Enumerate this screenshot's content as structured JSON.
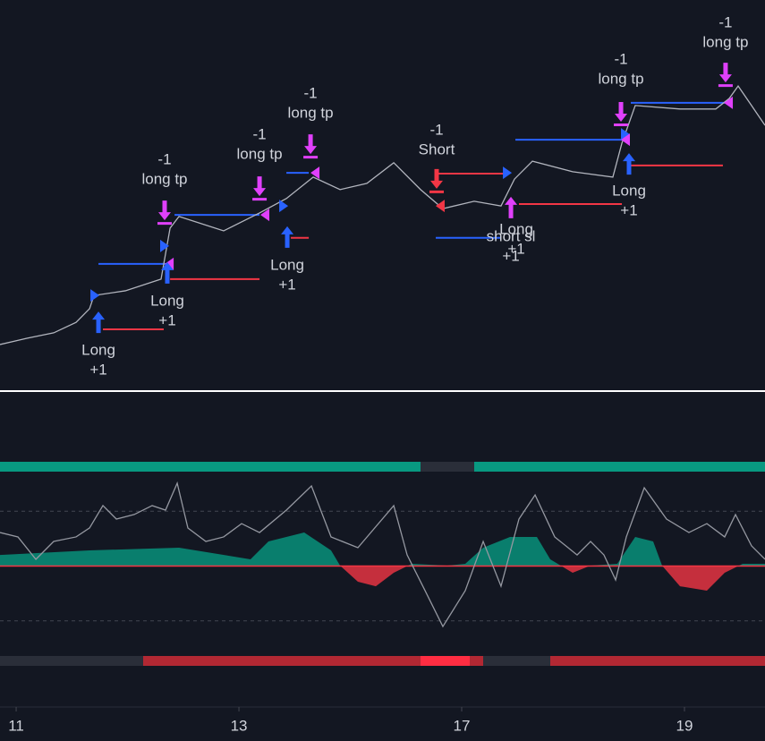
{
  "chart_data": [
    {
      "type": "line",
      "x": [
        -0.145,
        0.096,
        0.337,
        0.538,
        0.659,
        0.699,
        0.98,
        1.301,
        1.382,
        1.462,
        1.863,
        2.185,
        2.426,
        2.667,
        2.908,
        3.149,
        3.39,
        3.631,
        3.831,
        4.112,
        4.353,
        4.474,
        4.635,
        4.996,
        5.357,
        5.438,
        5.558,
        5.96,
        6.281,
        6.402,
        6.482,
        6.602,
        6.723
      ],
      "values": [
        11.5,
        13.1,
        14.5,
        17.2,
        20.7,
        24.1,
        25.3,
        28.3,
        41.4,
        44.4,
        40.7,
        45.3,
        49.0,
        54.5,
        51.3,
        52.9,
        58.2,
        51.3,
        46.4,
        48.3,
        47.1,
        54.0,
        58.6,
        55.9,
        54.5,
        63.2,
        72.9,
        72.0,
        72.0,
        74.7,
        77.9,
        72.9,
        67.8
      ],
      "color": "#b2b5be",
      "xlim": [
        -0.145,
        6.723
      ],
      "ylim": [
        0,
        100
      ],
      "levels": [
        {
          "x": [
            0.739,
            1.341
          ],
          "y": 32.2,
          "color": "#2962ff"
        },
        {
          "x": [
            1.422,
            2.185
          ],
          "y": 44.8,
          "color": "#2962ff"
        },
        {
          "x": [
            2.426,
            2.627
          ],
          "y": 55.6,
          "color": "#2962ff"
        },
        {
          "x": [
            3.767,
            4.353
          ],
          "y": 38.9,
          "color": "#2962ff"
        },
        {
          "x": [
            4.482,
            5.438
          ],
          "y": 64.1,
          "color": "#2962ff"
        },
        {
          "x": [
            5.518,
            6.361
          ],
          "y": 73.6,
          "color": "#2962ff"
        },
        {
          "x": [
            0.779,
            1.325
          ],
          "y": 15.4,
          "color": "#f23645"
        },
        {
          "x": [
            1.382,
            2.185
          ],
          "y": 28.3,
          "color": "#f23645"
        },
        {
          "x": [
            2.466,
            2.627
          ],
          "y": 38.9,
          "color": "#f23645"
        },
        {
          "x": [
            3.791,
            4.394
          ],
          "y": 55.4,
          "color": "#f23645"
        },
        {
          "x": [
            4.514,
            5.438
          ],
          "y": 47.6,
          "color": "#f23645"
        },
        {
          "x": [
            5.518,
            6.345
          ],
          "y": 57.5,
          "color": "#f23645"
        }
      ],
      "markers": [
        {
          "x": 0.699,
          "y": 24.1,
          "shape": "triangle-right",
          "color": "#2962ff"
        },
        {
          "x": 1.325,
          "y": 36.8,
          "shape": "triangle-right",
          "color": "#2962ff"
        },
        {
          "x": 2.394,
          "y": 47.1,
          "shape": "triangle-right",
          "color": "#2962ff"
        },
        {
          "x": 4.402,
          "y": 55.6,
          "shape": "triangle-right",
          "color": "#2962ff"
        },
        {
          "x": 5.462,
          "y": 65.5,
          "shape": "triangle-right",
          "color": "#2962ff"
        },
        {
          "x": 1.382,
          "y": 32.2,
          "shape": "triangle-left",
          "color": "#e040fb"
        },
        {
          "x": 2.241,
          "y": 44.8,
          "shape": "triangle-left",
          "color": "#e040fb"
        },
        {
          "x": 2.691,
          "y": 55.6,
          "shape": "triangle-left",
          "color": "#e040fb"
        },
        {
          "x": 5.478,
          "y": 64.1,
          "shape": "triangle-left",
          "color": "#e040fb"
        },
        {
          "x": 6.402,
          "y": 73.6,
          "shape": "triangle-left",
          "color": "#e040fb"
        },
        {
          "x": 3.815,
          "y": 47.1,
          "shape": "triangle-left",
          "color": "#f23645"
        },
        {
          "x": 0.739,
          "y": 17.2,
          "shape": "arrow-up",
          "color": "#2962ff"
        },
        {
          "x": 1.357,
          "y": 29.9,
          "shape": "arrow-up",
          "color": "#2962ff"
        },
        {
          "x": 2.434,
          "y": 39.1,
          "shape": "arrow-up",
          "color": "#2962ff"
        },
        {
          "x": 5.502,
          "y": 57.9,
          "shape": "arrow-up",
          "color": "#2962ff"
        },
        {
          "x": 4.442,
          "y": 46.7,
          "shape": "arrow-up",
          "color": "#e040fb"
        },
        {
          "x": 1.333,
          "y": 45.5,
          "shape": "arrow-down",
          "color": "#e040fb"
        },
        {
          "x": 2.185,
          "y": 51.7,
          "shape": "arrow-down",
          "color": "#e040fb"
        },
        {
          "x": 2.643,
          "y": 62.5,
          "shape": "arrow-down",
          "color": "#e040fb"
        },
        {
          "x": 5.43,
          "y": 70.8,
          "shape": "arrow-down",
          "color": "#e040fb"
        },
        {
          "x": 6.369,
          "y": 80.9,
          "shape": "arrow-down",
          "color": "#e040fb"
        },
        {
          "x": 3.775,
          "y": 53.6,
          "shape": "arrow-down",
          "color": "#f23645"
        }
      ],
      "annotations": [
        {
          "x": 0.739,
          "y": 9.9,
          "lines": [
            "Long",
            "+1"
          ]
        },
        {
          "x": 1.357,
          "y": 22.5,
          "lines": [
            "Long",
            "+1"
          ]
        },
        {
          "x": 1.333,
          "y": 58.9,
          "lines": [
            "-1",
            "long tp"
          ]
        },
        {
          "x": 2.185,
          "y": 65.3,
          "lines": [
            "-1",
            "long tp"
          ]
        },
        {
          "x": 2.434,
          "y": 31.7,
          "lines": [
            "Long",
            "+1"
          ]
        },
        {
          "x": 2.643,
          "y": 75.9,
          "lines": [
            "-1",
            "long tp"
          ]
        },
        {
          "x": 3.775,
          "y": 66.4,
          "lines": [
            "-1",
            "Short"
          ]
        },
        {
          "x": 4.49,
          "y": 40.9,
          "lines": [
            "Long",
            "+1"
          ]
        },
        {
          "x": 4.442,
          "y": 39.1,
          "lines": [
            "short sl",
            "+1"
          ]
        },
        {
          "x": 5.502,
          "y": 50.8,
          "lines": [
            "Long",
            "+1"
          ]
        },
        {
          "x": 5.43,
          "y": 84.6,
          "lines": [
            "-1",
            "long tp"
          ]
        },
        {
          "x": 6.369,
          "y": 94.0,
          "lines": [
            "-1",
            "long tp"
          ]
        }
      ]
    },
    {
      "type": "line",
      "x": [
        -0.145,
        0.016,
        0.177,
        0.337,
        0.538,
        0.659,
        0.779,
        0.9,
        1.06,
        1.221,
        1.341,
        1.446,
        1.542,
        1.703,
        1.863,
        2.024,
        2.185,
        2.426,
        2.651,
        2.827,
        3.068,
        3.39,
        3.51,
        3.671,
        3.831,
        4.032,
        4.193,
        4.353,
        4.514,
        4.659,
        4.835,
        5.036,
        5.157,
        5.277,
        5.382,
        5.478,
        5.639,
        5.839,
        6.04,
        6.201,
        6.361,
        6.458,
        6.602,
        6.723
      ],
      "values": [
        21.4,
        18.6,
        4.3,
        15.7,
        18.6,
        24.3,
        38.6,
        30,
        32.9,
        38.6,
        35.7,
        52.9,
        24.3,
        15.7,
        18.6,
        27.1,
        21.4,
        35.7,
        51.1,
        18.6,
        11.7,
        38.6,
        7.1,
        -15.7,
        -38.6,
        -15.7,
        15.7,
        -12.9,
        30,
        45.4,
        18.6,
        7.1,
        15.7,
        7.1,
        -8.9,
        18.6,
        50,
        30,
        21.4,
        27.1,
        18.6,
        32.9,
        12.9,
        4.3
      ],
      "color": "#9598a1",
      "area": {
        "x": [
          -0.145,
          0.659,
          1.462,
          2.104,
          2.265,
          2.586,
          2.827,
          2.908,
          3.068,
          3.229,
          3.39,
          3.551,
          3.871,
          4.032,
          4.193,
          4.434,
          4.675,
          4.795,
          4.996,
          5.157,
          5.397,
          5.558,
          5.719,
          5.799,
          5.96,
          6.201,
          6.361,
          6.522,
          6.723
        ],
        "values": [
          7.1,
          10,
          11.7,
          4.3,
          15.7,
          21.4,
          10,
          0.3,
          -10,
          -12.9,
          -4.3,
          1.4,
          0.3,
          1.4,
          11.7,
          18.6,
          18.6,
          4.3,
          -4.3,
          0.3,
          1.4,
          18.6,
          15.7,
          0.3,
          -12.9,
          -15.7,
          -4.3,
          1.4,
          1.4
        ],
        "colors": [
          "#089981",
          "#f23645"
        ]
      },
      "hlines": [
        35,
        -35
      ],
      "xlim": [
        -0.145,
        6.723
      ],
      "ylim": [
        -90,
        110
      ],
      "xticks": [
        {
          "value": 0,
          "label": "11"
        },
        {
          "value": 2,
          "label": "13"
        },
        {
          "value": 4,
          "label": "17"
        },
        {
          "value": 6,
          "label": "19"
        }
      ]
    }
  ]
}
